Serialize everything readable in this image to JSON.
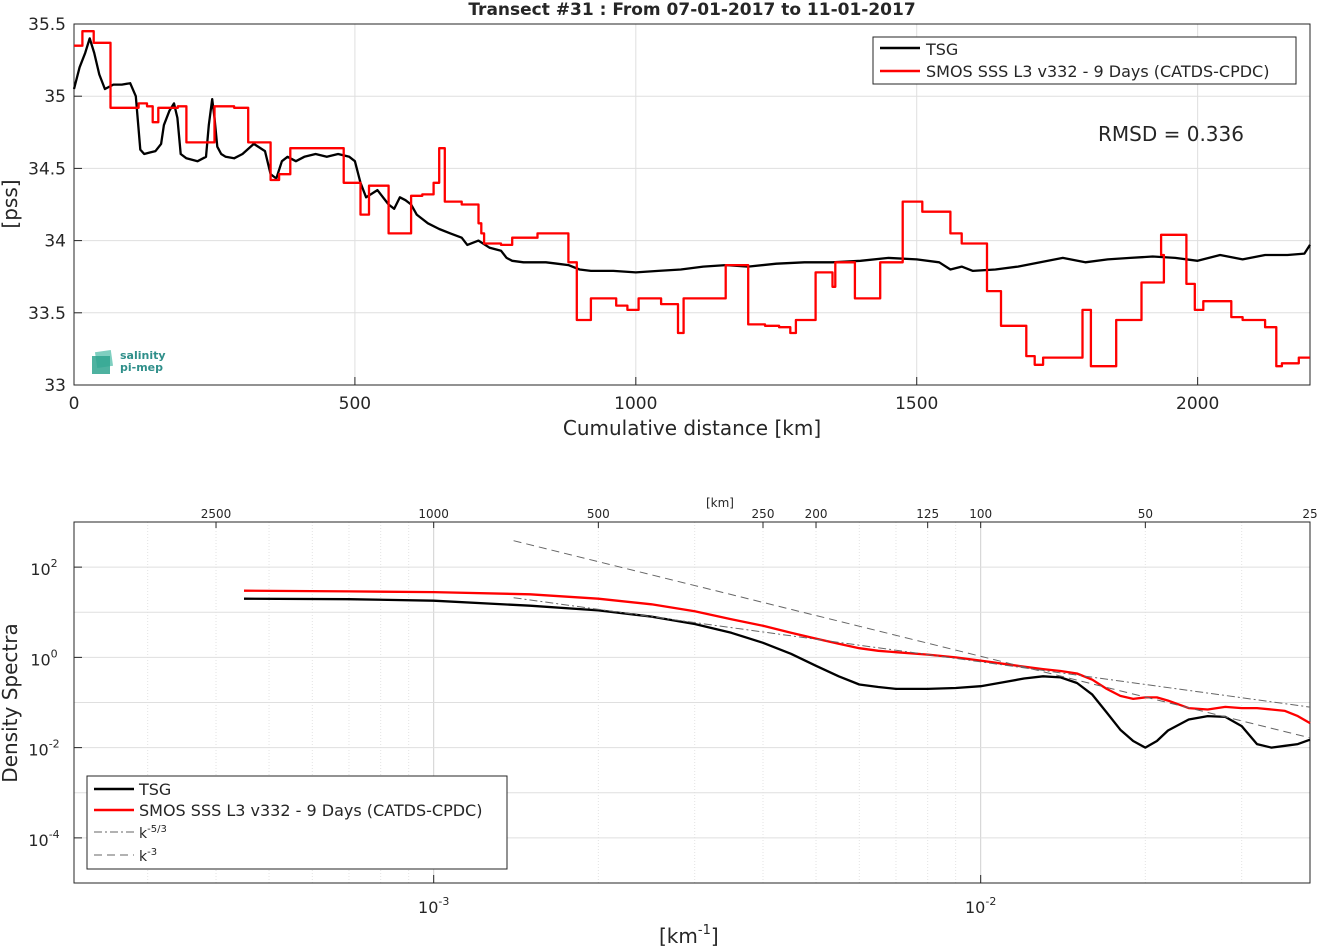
{
  "chart_data": [
    {
      "type": "line",
      "title": "Transect #31 : From 07-01-2017 to 11-01-2017",
      "xlabel": "Cumulative distance [km]",
      "ylabel": "[pss]",
      "xlim": [
        0,
        2200
      ],
      "ylim": [
        33,
        35.5
      ],
      "xticks": [
        "0",
        "500",
        "1000",
        "1500",
        "2000"
      ],
      "yticks": [
        "33",
        "33.5",
        "34",
        "34.5",
        "35",
        "35.5"
      ],
      "annotation": "RMSD = 0.336",
      "logo": {
        "line1": "salinity",
        "line2": "pi-mep"
      },
      "legend_position": "top-right",
      "grid": true,
      "series": [
        {
          "name": "TSG",
          "color": "#000000",
          "style": "solid",
          "x": [
            0,
            10,
            20,
            28,
            36,
            45,
            55,
            70,
            85,
            100,
            110,
            118,
            125,
            135,
            145,
            155,
            160,
            170,
            178,
            184,
            190,
            200,
            220,
            235,
            240,
            246,
            250,
            255,
            262,
            270,
            285,
            300,
            320,
            340,
            350,
            360,
            370,
            380,
            395,
            410,
            430,
            450,
            470,
            490,
            500,
            510,
            520,
            540,
            560,
            570,
            580,
            590,
            600,
            610,
            630,
            650,
            670,
            690,
            700,
            720,
            740,
            760,
            770,
            780,
            800,
            820,
            840,
            860,
            880,
            900,
            920,
            960,
            1000,
            1040,
            1080,
            1120,
            1160,
            1200,
            1250,
            1300,
            1350,
            1400,
            1450,
            1500,
            1540,
            1560,
            1580,
            1600,
            1640,
            1680,
            1720,
            1760,
            1800,
            1840,
            1880,
            1920,
            1960,
            2000,
            2040,
            2080,
            2120,
            2160,
            2190,
            2200
          ],
          "y": [
            35.05,
            35.2,
            35.3,
            35.4,
            35.3,
            35.15,
            35.05,
            35.08,
            35.08,
            35.09,
            35.0,
            34.63,
            34.6,
            34.61,
            34.62,
            34.67,
            34.8,
            34.9,
            34.95,
            34.85,
            34.6,
            34.57,
            34.55,
            34.58,
            34.8,
            34.98,
            34.85,
            34.65,
            34.6,
            34.58,
            34.57,
            34.6,
            34.67,
            34.62,
            34.46,
            34.43,
            34.55,
            34.58,
            34.55,
            34.58,
            34.6,
            34.58,
            34.6,
            34.58,
            34.55,
            34.4,
            34.3,
            34.35,
            34.25,
            34.22,
            34.3,
            34.28,
            34.25,
            34.18,
            34.12,
            34.08,
            34.05,
            34.02,
            33.97,
            34.0,
            33.95,
            33.93,
            33.88,
            33.86,
            33.85,
            33.85,
            33.85,
            33.84,
            33.83,
            33.8,
            33.79,
            33.79,
            33.78,
            33.79,
            33.8,
            33.82,
            33.83,
            33.82,
            33.84,
            33.85,
            33.85,
            33.86,
            33.88,
            33.87,
            33.85,
            33.8,
            33.82,
            33.79,
            33.8,
            33.82,
            33.85,
            33.88,
            33.85,
            33.87,
            33.88,
            33.89,
            33.88,
            33.86,
            33.9,
            33.87,
            33.9,
            33.9,
            33.91,
            33.97
          ]
        },
        {
          "name": "SMOS SSS L3 v332 - 9 Days (CATDS-CPDC)",
          "color": "#ff0000",
          "style": "step",
          "x": [
            0,
            15,
            35,
            65,
            115,
            130,
            140,
            150,
            185,
            200,
            250,
            285,
            310,
            350,
            365,
            385,
            450,
            480,
            510,
            525,
            560,
            600,
            620,
            640,
            650,
            660,
            690,
            720,
            725,
            730,
            760,
            780,
            810,
            825,
            880,
            895,
            920,
            965,
            985,
            1005,
            1030,
            1045,
            1075,
            1085,
            1145,
            1160,
            1200,
            1230,
            1255,
            1275,
            1285,
            1310,
            1320,
            1345,
            1350,
            1355,
            1355,
            1390,
            1435,
            1475,
            1510,
            1560,
            1565,
            1580,
            1625,
            1650,
            1695,
            1710,
            1710,
            1725,
            1770,
            1795,
            1810,
            1855,
            1885,
            1900,
            1940,
            1935,
            1975,
            1980,
            1995,
            2010,
            2060,
            2080,
            2090,
            2110,
            2120,
            2140,
            2150,
            2180,
            2200
          ],
          "y": [
            35.35,
            35.45,
            35.37,
            34.92,
            34.95,
            34.93,
            34.82,
            34.92,
            34.93,
            34.68,
            34.93,
            34.92,
            34.68,
            34.42,
            34.46,
            34.64,
            34.64,
            34.4,
            34.18,
            34.38,
            34.05,
            34.31,
            34.32,
            34.4,
            34.64,
            34.27,
            34.25,
            34.12,
            34.05,
            33.98,
            33.97,
            34.02,
            34.02,
            34.05,
            33.85,
            33.45,
            33.6,
            33.55,
            33.52,
            33.6,
            33.6,
            33.56,
            33.36,
            33.6,
            33.6,
            33.83,
            33.42,
            33.41,
            33.4,
            33.36,
            33.45,
            33.45,
            33.78,
            33.78,
            33.68,
            33.68,
            33.85,
            33.6,
            33.85,
            34.27,
            34.2,
            34.05,
            34.05,
            33.98,
            33.65,
            33.41,
            33.2,
            33.14,
            33.14,
            33.19,
            33.19,
            33.52,
            33.13,
            33.45,
            33.45,
            33.71,
            33.9,
            34.04,
            34.04,
            33.7,
            33.52,
            33.58,
            33.47,
            33.45,
            33.45,
            33.45,
            33.4,
            33.13,
            33.15,
            33.19,
            33.19
          ]
        }
      ]
    },
    {
      "type": "line",
      "title": "",
      "xlabel": "[km^-1]",
      "ylabel": "Density Spectra",
      "top_axis_label": "[km]",
      "top_ticks": [
        "2500",
        "1000",
        "500",
        "250",
        "200",
        "125",
        "100",
        "50",
        "25"
      ],
      "top_tick_values_km": [
        2500,
        1000,
        500,
        250,
        200,
        125,
        100,
        50,
        25
      ],
      "xscale": "log",
      "yscale": "log",
      "xlim": [
        0.00022,
        0.04
      ],
      "ylim": [
        1e-05,
        1000
      ],
      "xticks": [
        "10^-3",
        "10^-2"
      ],
      "yticks": [
        "10^2",
        "10^0",
        "10^-2",
        "10^-4"
      ],
      "legend_position": "bottom-left",
      "grid": true,
      "series": [
        {
          "name": "TSG",
          "color": "#000000",
          "style": "solid",
          "x": [
            0.00045,
            0.0007,
            0.001,
            0.0015,
            0.002,
            0.0025,
            0.003,
            0.0035,
            0.004,
            0.0045,
            0.005,
            0.0055,
            0.006,
            0.0065,
            0.007,
            0.008,
            0.009,
            0.01,
            0.011,
            0.012,
            0.013,
            0.014,
            0.015,
            0.016,
            0.017,
            0.018,
            0.019,
            0.02,
            0.021,
            0.022,
            0.024,
            0.026,
            0.028,
            0.03,
            0.032,
            0.034,
            0.036,
            0.038,
            0.04
          ],
          "y": [
            20,
            19.5,
            18,
            14,
            11,
            8,
            5.5,
            3.5,
            2.1,
            1.2,
            0.65,
            0.38,
            0.25,
            0.22,
            0.2,
            0.2,
            0.21,
            0.23,
            0.28,
            0.34,
            0.38,
            0.36,
            0.27,
            0.15,
            0.06,
            0.025,
            0.014,
            0.01,
            0.014,
            0.024,
            0.042,
            0.05,
            0.048,
            0.03,
            0.012,
            0.01,
            0.011,
            0.012,
            0.015
          ]
        },
        {
          "name": "SMOS SSS L3 v332 - 9 Days (CATDS-CPDC)",
          "color": "#ff0000",
          "style": "solid",
          "x": [
            0.00045,
            0.0007,
            0.001,
            0.0015,
            0.002,
            0.0025,
            0.003,
            0.0035,
            0.004,
            0.0045,
            0.005,
            0.0055,
            0.006,
            0.0065,
            0.007,
            0.008,
            0.009,
            0.01,
            0.011,
            0.012,
            0.013,
            0.014,
            0.015,
            0.016,
            0.017,
            0.018,
            0.019,
            0.02,
            0.021,
            0.022,
            0.024,
            0.026,
            0.028,
            0.03,
            0.032,
            0.034,
            0.036,
            0.038,
            0.04
          ],
          "y": [
            30,
            29,
            28,
            25,
            20,
            15,
            10.5,
            7,
            5,
            3.5,
            2.6,
            2.0,
            1.6,
            1.4,
            1.3,
            1.15,
            1.0,
            0.85,
            0.72,
            0.62,
            0.55,
            0.5,
            0.44,
            0.32,
            0.2,
            0.14,
            0.12,
            0.13,
            0.13,
            0.11,
            0.075,
            0.07,
            0.08,
            0.075,
            0.075,
            0.07,
            0.065,
            0.05,
            0.035
          ]
        },
        {
          "name": "k^-5/3",
          "color": "#666666",
          "style": "dashdot",
          "x": [
            0.0014,
            0.04
          ],
          "y": [
            21,
            0.079
          ]
        },
        {
          "name": "k^-3",
          "color": "#666666",
          "style": "dashed",
          "x": [
            0.0014,
            0.04
          ],
          "y": [
            386,
            0.0165
          ]
        }
      ]
    }
  ]
}
